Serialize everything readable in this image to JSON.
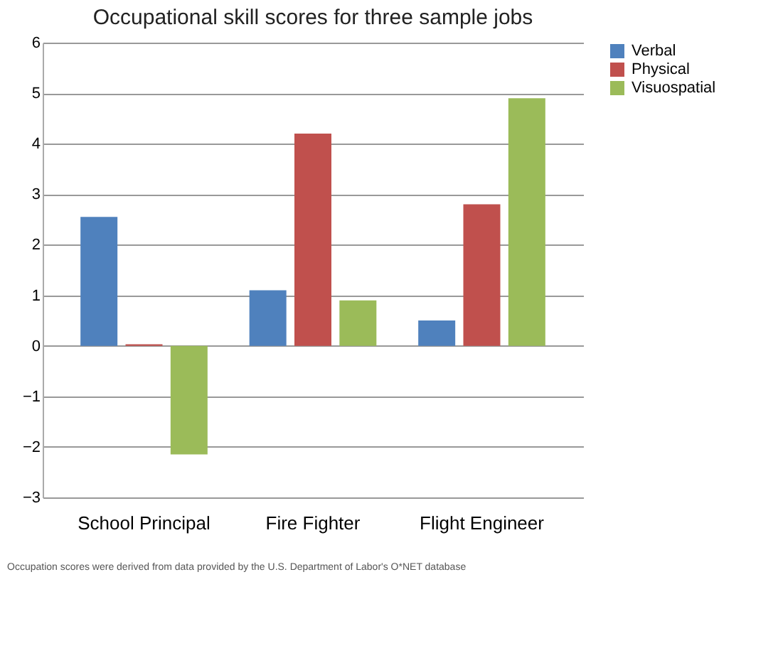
{
  "chart_data": {
    "type": "bar",
    "title": "Occupational skill scores for three sample jobs",
    "categories": [
      "School Principal",
      "Fire Fighter",
      "Flight Engineer"
    ],
    "series": [
      {
        "name": "Verbal",
        "color": "#4f81bd",
        "values": [
          2.55,
          1.1,
          0.5
        ]
      },
      {
        "name": "Physical",
        "color": "#c0504d",
        "values": [
          0.03,
          4.2,
          2.8
        ]
      },
      {
        "name": "Visuospatial",
        "color": "#9bbb59",
        "values": [
          -2.15,
          0.9,
          4.9
        ]
      }
    ],
    "ylim": [
      -3,
      6
    ],
    "yticks": [
      -3,
      -2,
      -1,
      0,
      1,
      2,
      3,
      4,
      5,
      6
    ],
    "grid": "y",
    "legend": "right",
    "annotations": [
      "Occupation scores were derived from data provided by the U.S. Department of Labor's O*NET database"
    ]
  }
}
